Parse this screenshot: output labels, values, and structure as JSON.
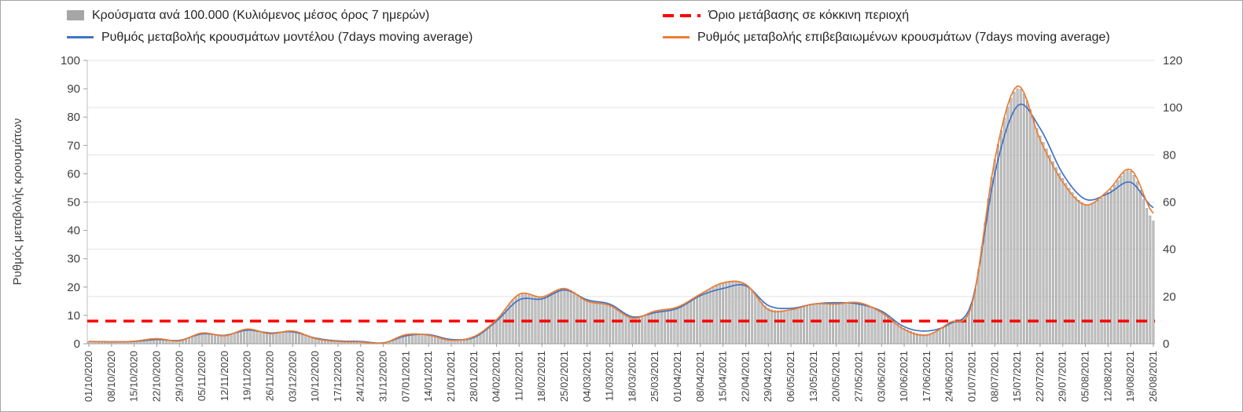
{
  "legend": {
    "items": [
      {
        "label": "Κρούσματα ανά 100.000 (Κυλιόμενος μέσος όρος 7 ημερών)",
        "swatch": "bar",
        "color": "#a6a6a6"
      },
      {
        "label": "Όριο μετάβασης σε κόκκινη περιοχή",
        "swatch": "dashed",
        "color": "#ff0000"
      },
      {
        "label": "Ρυθμός μεταβολής κρουσμάτων μοντέλου (7days moving average)",
        "swatch": "line",
        "color": "#4472c4"
      },
      {
        "label": "Ρυθμός μεταβολής επιβεβαιωμένων κρουσμάτων (7days moving average)",
        "swatch": "line",
        "color": "#ed7d31"
      }
    ]
  },
  "chart_data": {
    "type": "combo",
    "grid": "horizontal",
    "x_labels": [
      "01/10/2020",
      "08/10/2020",
      "15/10/2020",
      "22/10/2020",
      "29/10/2020",
      "05/11/2020",
      "12/11/2020",
      "19/11/2020",
      "26/11/2020",
      "03/12/2020",
      "10/12/2020",
      "17/12/2020",
      "24/12/2020",
      "31/12/2020",
      "07/01/2021",
      "14/01/2021",
      "21/01/2021",
      "28/01/2021",
      "04/02/2021",
      "11/02/2021",
      "18/02/2021",
      "25/02/2021",
      "04/03/2021",
      "11/03/2021",
      "18/03/2021",
      "25/03/2021",
      "01/04/2021",
      "08/04/2021",
      "15/04/2021",
      "22/04/2021",
      "29/04/2021",
      "06/05/2021",
      "13/05/2021",
      "20/05/2021",
      "27/05/2021",
      "03/06/2021",
      "10/06/2021",
      "17/06/2021",
      "24/06/2021",
      "01/07/2021",
      "08/07/2021",
      "15/07/2021",
      "22/07/2021",
      "29/07/2021",
      "05/08/2021",
      "12/08/2021",
      "19/08/2021",
      "26/08/2021"
    ],
    "left_axis": {
      "title": "Ρυθμός μεταβολής κρουσμάτων",
      "min": 0,
      "max": 100,
      "ticks": [
        0,
        10,
        20,
        30,
        40,
        50,
        60,
        70,
        80,
        90,
        100
      ]
    },
    "right_axis": {
      "min": 0,
      "max": 120,
      "ticks": [
        0,
        20,
        40,
        60,
        80,
        100,
        120
      ]
    },
    "threshold": {
      "value": 8,
      "color": "#ff0000",
      "label": "Όριο μετάβασης σε κόκκινη περιοχή"
    },
    "series": [
      {
        "id": "cases-per-100k",
        "name": "Κρούσματα ανά 100.000 (Κυλιόμενος μέσος όρος 7 ημερών)",
        "type": "bar",
        "axis": "right",
        "color": "#c9c9c9",
        "border": "#8f8f8f",
        "values": [
          1.0,
          0.9,
          1.2,
          2.2,
          1.5,
          4.5,
          3.5,
          6.2,
          4.5,
          5.5,
          2.5,
          1.2,
          0.9,
          0.4,
          4.0,
          3.8,
          1.8,
          3.2,
          10.0,
          21.0,
          20.0,
          23.5,
          18.5,
          16.5,
          11.0,
          14.0,
          15.5,
          21.0,
          25.5,
          25.0,
          15.0,
          14.5,
          17.0,
          17.0,
          17.5,
          13.5,
          6.5,
          4.0,
          9.0,
          17.0,
          78.0,
          108.0,
          88.0,
          70.0,
          59.0,
          64.0,
          73.0,
          52.0
        ]
      },
      {
        "id": "model",
        "name": "Ρυθμός μεταβολής κρουσμάτων μοντέλου (7days moving average)",
        "type": "line",
        "axis": "left",
        "color": "#4472c4",
        "values": [
          0.8,
          0.7,
          0.8,
          1.5,
          1.2,
          3.5,
          3.0,
          4.8,
          3.8,
          4.2,
          2.0,
          1.0,
          0.8,
          0.3,
          2.8,
          3.2,
          1.5,
          2.2,
          8.0,
          15.5,
          15.8,
          19.0,
          15.5,
          14.0,
          9.5,
          11.0,
          12.5,
          17.0,
          19.5,
          20.5,
          13.5,
          12.5,
          14.0,
          14.5,
          14.0,
          11.5,
          6.0,
          4.5,
          7.0,
          15.0,
          60.0,
          84.0,
          76.0,
          60.0,
          51.0,
          53.0,
          57.0,
          48.0
        ]
      },
      {
        "id": "confirmed",
        "name": "Ρυθμός μεταβολής επιβεβαιωμένων κρουσμάτων (7days moving average)",
        "type": "line",
        "axis": "left",
        "color": "#ed7d31",
        "values": [
          0.8,
          0.6,
          0.9,
          1.8,
          1.0,
          3.8,
          2.8,
          5.2,
          3.5,
          4.5,
          1.8,
          0.8,
          0.6,
          0.2,
          3.2,
          3.0,
          1.2,
          2.5,
          8.5,
          17.5,
          16.5,
          19.5,
          15.0,
          13.5,
          9.0,
          11.5,
          13.0,
          17.5,
          21.5,
          21.0,
          12.0,
          12.0,
          14.0,
          14.0,
          14.5,
          11.0,
          5.0,
          3.0,
          7.5,
          14.0,
          65.0,
          91.0,
          72.0,
          57.0,
          49.0,
          54.0,
          61.5,
          46.0
        ]
      }
    ]
  }
}
